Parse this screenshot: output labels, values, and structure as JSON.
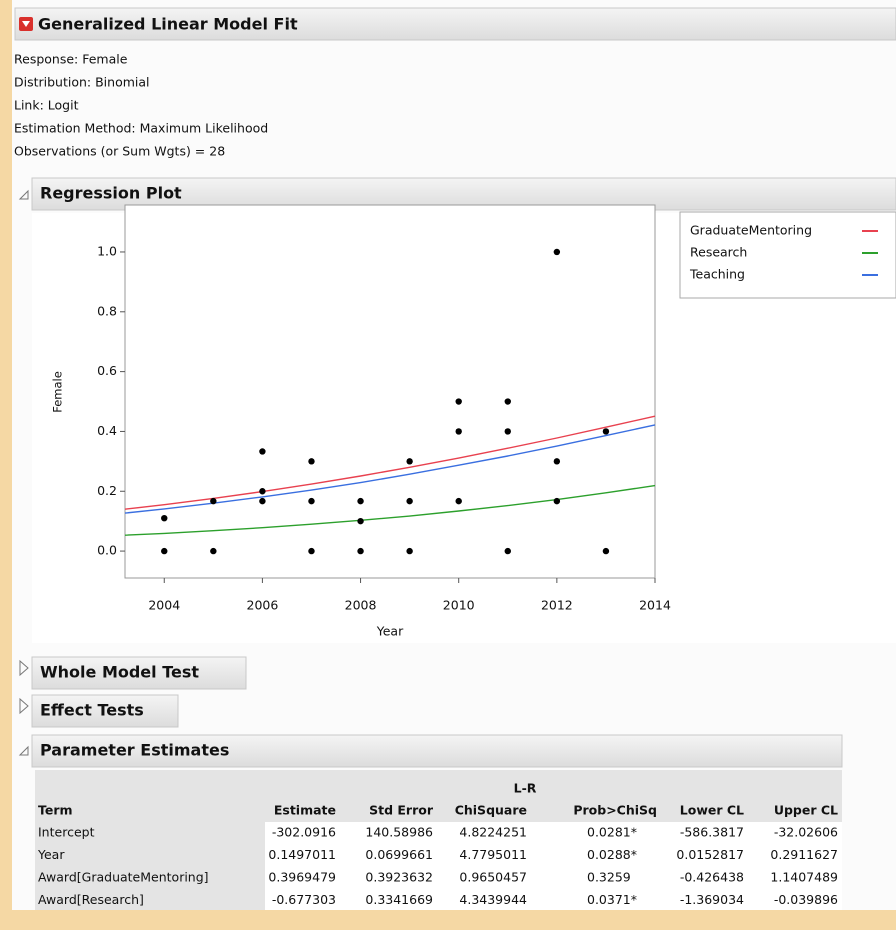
{
  "header": {
    "title": "Generalized Linear Model Fit"
  },
  "info": [
    "Response: Female",
    "Distribution: Binomial",
    "Link: Logit",
    "Estimation Method: Maximum Likelihood",
    "Observations (or Sum Wgts) = 28"
  ],
  "sections": {
    "regression_plot": "Regression Plot",
    "whole_model_test": "Whole Model Test",
    "effect_tests": "Effect Tests",
    "parameter_estimates": "Parameter Estimates"
  },
  "chart_data": {
    "type": "scatter",
    "xlabel": "Year",
    "ylabel": "Female",
    "x": [
      2004,
      2004,
      2005,
      2005,
      2006,
      2006,
      2006,
      2007,
      2007,
      2007,
      2008,
      2008,
      2008,
      2009,
      2009,
      2009,
      2010,
      2010,
      2010,
      2011,
      2011,
      2011,
      2012,
      2012,
      2012,
      2013,
      2013
    ],
    "values": [
      0.11,
      0,
      0.167,
      0,
      0.333,
      0.2,
      0.167,
      0.3,
      0.167,
      0,
      0.167,
      0.1,
      0,
      0.3,
      0.167,
      0,
      0.5,
      0.4,
      0.167,
      0.5,
      0.4,
      0,
      1.0,
      0.3,
      0.167,
      0.4,
      0
    ],
    "color": "#000000",
    "series": [
      {
        "name": "GraduateMentoring",
        "color": "#e8414f",
        "x": [
          2003.2,
          2004,
          2005,
          2006,
          2007,
          2008,
          2009,
          2010,
          2011,
          2012,
          2013,
          2014
        ],
        "values": [
          0.14,
          0.155,
          0.176,
          0.199,
          0.224,
          0.251,
          0.28,
          0.311,
          0.344,
          0.378,
          0.414,
          0.451
        ]
      },
      {
        "name": "Research",
        "color": "#2ca02c",
        "x": [
          2003.2,
          2004,
          2005,
          2006,
          2007,
          2008,
          2009,
          2010,
          2011,
          2012,
          2013,
          2014
        ],
        "values": [
          0.053,
          0.059,
          0.068,
          0.078,
          0.09,
          0.103,
          0.117,
          0.134,
          0.152,
          0.172,
          0.195,
          0.219
        ]
      },
      {
        "name": "Teaching",
        "color": "#3a6fe0",
        "x": [
          2003.2,
          2004,
          2005,
          2006,
          2007,
          2008,
          2009,
          2010,
          2011,
          2012,
          2013,
          2014
        ],
        "values": [
          0.127,
          0.141,
          0.16,
          0.181,
          0.204,
          0.229,
          0.257,
          0.287,
          0.318,
          0.351,
          0.386,
          0.422
        ]
      }
    ],
    "xlim": [
      2003.2,
      2014
    ],
    "ylim": [
      -0.09,
      1.157
    ],
    "xticks": [
      2004,
      2006,
      2008,
      2010,
      2012,
      2014
    ],
    "yticks": [
      {
        "value": 0,
        "label": "0.0"
      },
      {
        "value": 0.2,
        "label": "0.2"
      },
      {
        "value": 0.4,
        "label": "0.4"
      },
      {
        "value": 0.6,
        "label": "0.6"
      },
      {
        "value": 0.8,
        "label": "0.8"
      },
      {
        "value": 1,
        "label": "1.0"
      }
    ],
    "legend": "right"
  },
  "table": {
    "group_label": "L-R",
    "columns": [
      "Term",
      "Estimate",
      "Std Error",
      "ChiSquare",
      "Prob>ChiSq",
      "Lower CL",
      "Upper CL"
    ],
    "rows": [
      [
        "Intercept",
        "-302.0916",
        "140.58986",
        "4.8224251",
        "0.0281*",
        "-586.3817",
        "-32.02606"
      ],
      [
        "Year",
        "0.1497011",
        "0.0699661",
        "4.7795011",
        "0.0288*",
        "0.0152817",
        "0.2911627"
      ],
      [
        "Award[GraduateMentoring]",
        "0.3969479",
        "0.3923632",
        "0.9650457",
        "0.3259",
        "-0.426438",
        "1.1407489"
      ],
      [
        "Award[Research]",
        "-0.677303",
        "0.3341669",
        "4.3439944",
        "0.0371*",
        "-1.369034",
        "-0.039896"
      ]
    ]
  }
}
